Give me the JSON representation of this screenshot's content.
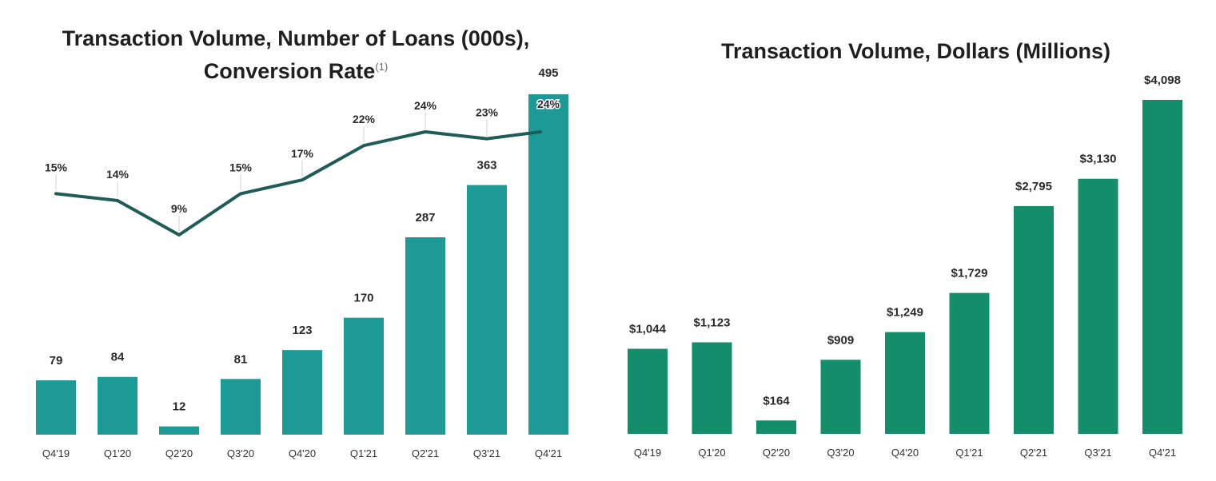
{
  "chart_data": [
    {
      "type": "bar",
      "title": "Transaction Volume, Number of Loans (000s), Conversion Rate",
      "title_lines": [
        "Transaction Volume, Number of Loans (000s),",
        "Conversion Rate"
      ],
      "title_footnote": "(1)",
      "categories": [
        "Q4'19",
        "Q1'20",
        "Q2'20",
        "Q3'20",
        "Q4'20",
        "Q1'21",
        "Q2'21",
        "Q3'21",
        "Q4'21"
      ],
      "series": [
        {
          "type": "bar",
          "values": [
            79,
            84,
            12,
            81,
            123,
            170,
            287,
            363,
            495
          ],
          "labels": [
            "79",
            "84",
            "12",
            "81",
            "123",
            "170",
            "287",
            "363",
            "495"
          ],
          "color": "#1e9a96"
        },
        {
          "type": "line",
          "values": [
            15,
            14,
            9,
            15,
            17,
            22,
            24,
            23,
            24
          ],
          "labels": [
            "15%",
            "14%",
            "9%",
            "15%",
            "17%",
            "22%",
            "24%",
            "23%",
            "24%"
          ],
          "color": "#1f5c58"
        }
      ],
      "grid": false,
      "legend": "none"
    },
    {
      "type": "bar",
      "title": "Transaction Volume, Dollars (Millions)",
      "categories": [
        "Q4'19",
        "Q1'20",
        "Q2'20",
        "Q3'20",
        "Q4'20",
        "Q1'21",
        "Q2'21",
        "Q3'21",
        "Q4'21"
      ],
      "series": [
        {
          "values": [
            1044,
            1123,
            164,
            909,
            1249,
            1729,
            2795,
            3130,
            4098
          ],
          "labels": [
            "$1,044",
            "$1,123",
            "$164",
            "$909",
            "$1,249",
            "$1,729",
            "$2,795",
            "$3,130",
            "$4,098"
          ],
          "color": "#138d6a"
        }
      ],
      "grid": false,
      "legend": "none"
    }
  ]
}
